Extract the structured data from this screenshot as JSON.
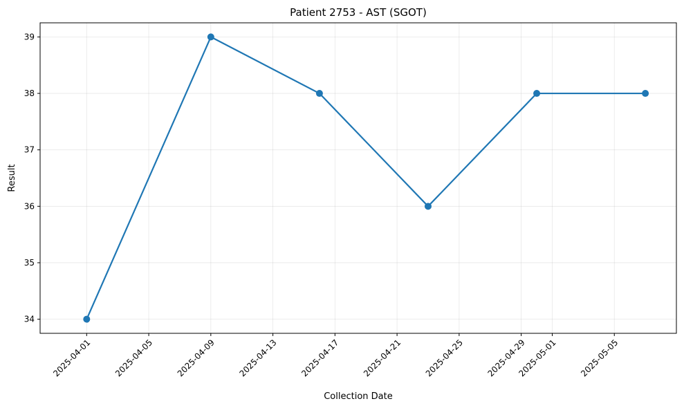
{
  "chart_data": {
    "type": "line",
    "title": "Patient 2753 - AST (SGOT)",
    "xlabel": "Collection Date",
    "ylabel": "Result",
    "x_ticks": [
      "2025-04-01",
      "2025-04-05",
      "2025-04-09",
      "2025-04-13",
      "2025-04-17",
      "2025-04-21",
      "2025-04-25",
      "2025-04-29",
      "2025-05-01",
      "2025-05-05"
    ],
    "y_ticks": [
      34,
      35,
      36,
      37,
      38,
      39
    ],
    "xlim": [
      "2025-03-29",
      "2025-05-09"
    ],
    "ylim": [
      33.75,
      39.25
    ],
    "grid": true,
    "series": [
      {
        "color": "#1f77b4",
        "marker": "circle",
        "points": [
          {
            "x": "2025-04-01",
            "y": 34
          },
          {
            "x": "2025-04-09",
            "y": 39
          },
          {
            "x": "2025-04-16",
            "y": 38
          },
          {
            "x": "2025-04-23",
            "y": 36
          },
          {
            "x": "2025-04-30",
            "y": 38
          },
          {
            "x": "2025-05-07",
            "y": 38
          }
        ]
      }
    ]
  }
}
